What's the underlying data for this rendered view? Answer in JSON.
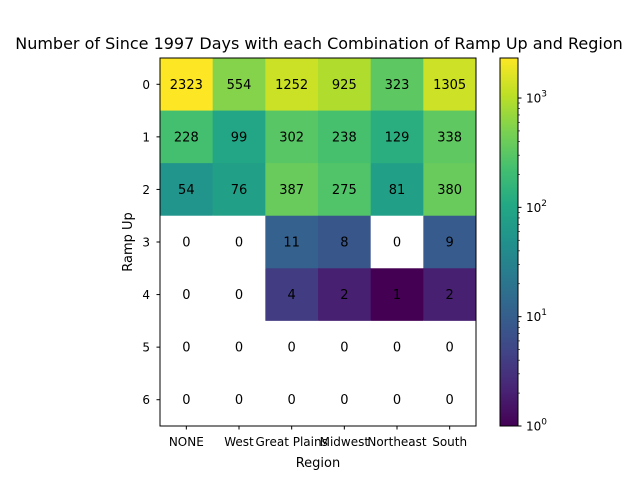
{
  "chart_data": {
    "type": "heatmap",
    "title": "Number of Since 1997 Days with each Combination of Ramp Up and Region",
    "xlabel": "Region",
    "ylabel": "Ramp Up",
    "x_categories": [
      "NONE",
      "West",
      "Great Plains",
      "Midwest",
      "Northeast",
      "South"
    ],
    "y_categories": [
      "0",
      "1",
      "2",
      "3",
      "4",
      "5",
      "6"
    ],
    "values": [
      [
        2323,
        554,
        1252,
        925,
        323,
        1305
      ],
      [
        228,
        99,
        302,
        238,
        129,
        338
      ],
      [
        54,
        76,
        387,
        275,
        81,
        380
      ],
      [
        0,
        0,
        11,
        8,
        0,
        9
      ],
      [
        0,
        0,
        4,
        2,
        1,
        2
      ],
      [
        0,
        0,
        0,
        0,
        0,
        0
      ],
      [
        0,
        0,
        0,
        0,
        0,
        0
      ]
    ],
    "color_scale": "log",
    "colormap": "viridis",
    "zero_color": "#ffffff",
    "colorbar": {
      "min": 1,
      "max": 2323,
      "tick_labels": [
        "10^0",
        "10^1",
        "10^2",
        "10^3"
      ]
    }
  }
}
